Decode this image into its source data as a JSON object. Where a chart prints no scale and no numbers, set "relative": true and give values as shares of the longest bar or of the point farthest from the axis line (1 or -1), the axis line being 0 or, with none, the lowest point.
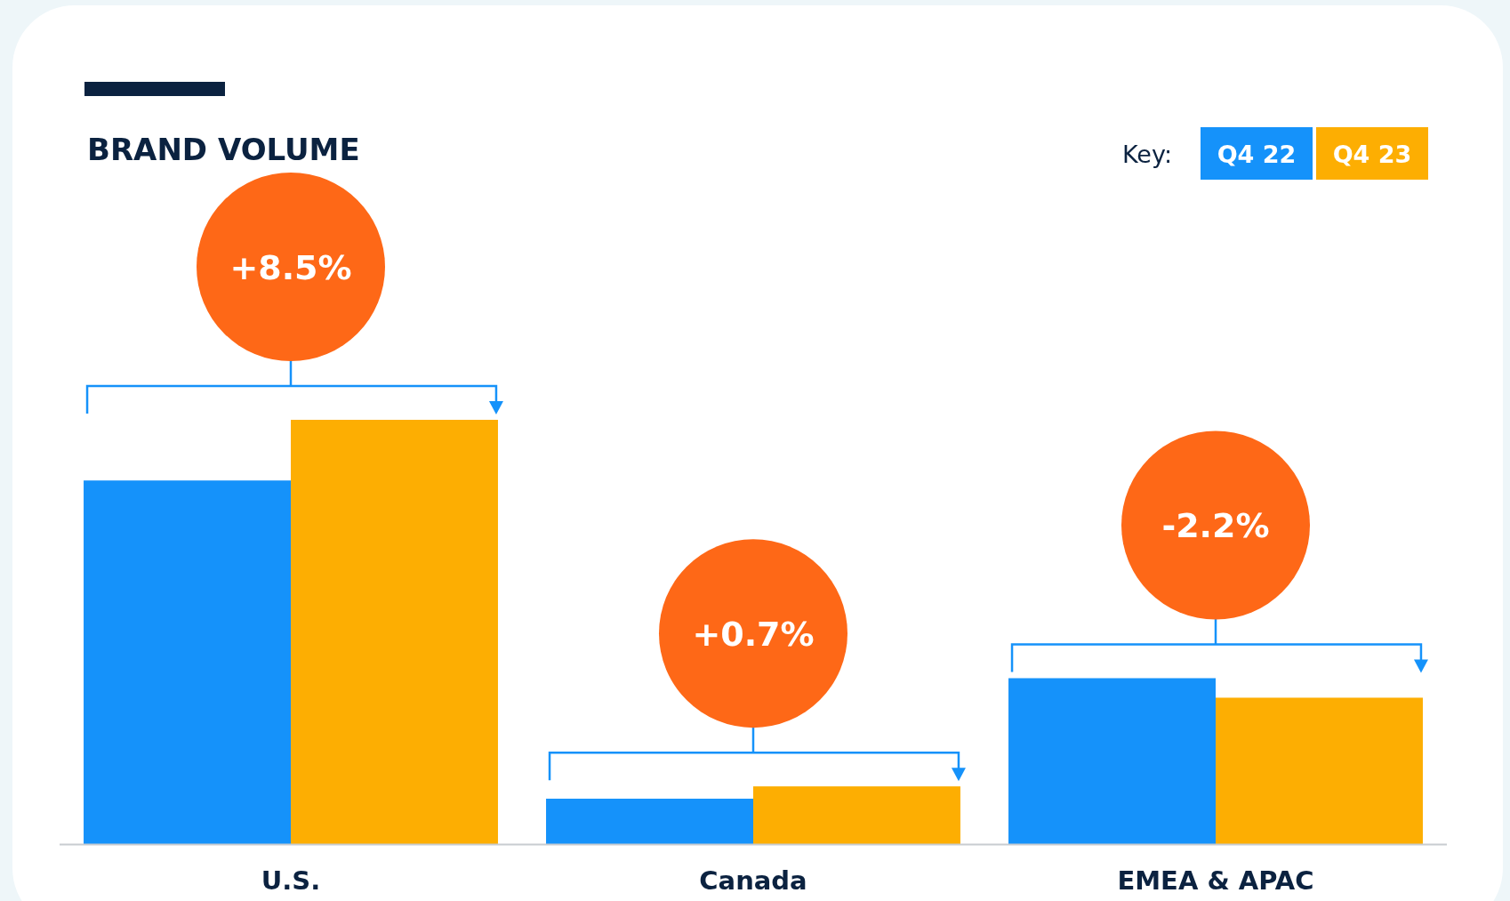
{
  "chart_data": {
    "type": "bar",
    "title": "BRAND VOLUME",
    "relative": true,
    "categories": [
      "U.S.",
      "Canada",
      "EMEA & APAC"
    ],
    "series": [
      {
        "name": "Q4 22",
        "color": "#1592fa",
        "values": [
          0.857,
          0.107,
          0.391
        ]
      },
      {
        "name": "Q4 23",
        "color": "#fdae02",
        "values": [
          1,
          0.136,
          0.345
        ]
      }
    ],
    "legend": "top right",
    "legend_title": "Key:",
    "annotations": [
      "+8.5%",
      "+0.7%",
      "-2.2%"
    ]
  }
}
